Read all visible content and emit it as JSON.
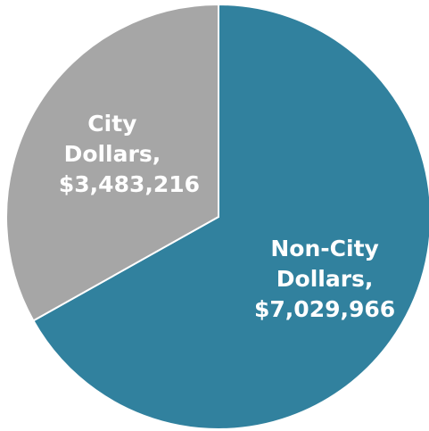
{
  "chart_data": {
    "type": "pie",
    "categories": [
      "Non-City Dollars,",
      "City Dollars,"
    ],
    "values": [
      7029966,
      3483216
    ],
    "value_labels": [
      "$7,029,966",
      "$3,483,216"
    ],
    "colors": [
      "#31819e",
      "#a6a6a6"
    ]
  }
}
